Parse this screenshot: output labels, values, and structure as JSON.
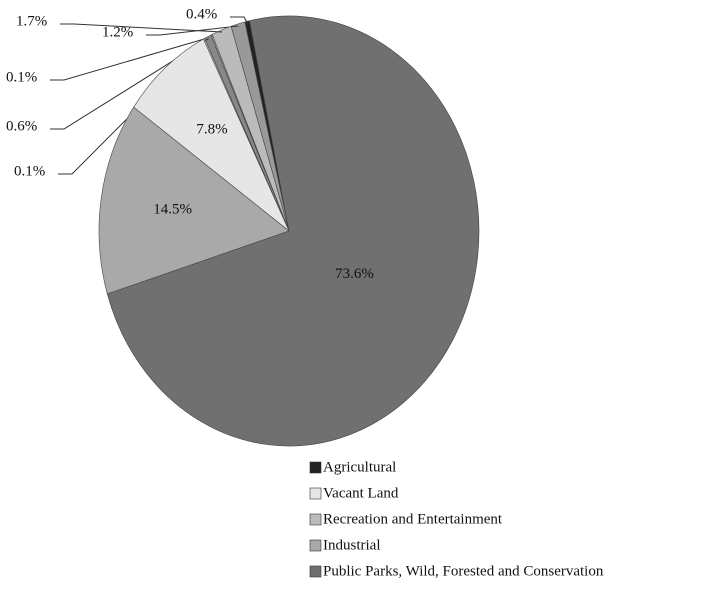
{
  "chart_data": {
    "type": "pie",
    "values": [
      0.4,
      1.2,
      1.7,
      0.1,
      0.6,
      0.1,
      7.8,
      14.5,
      73.6
    ],
    "value_labels": [
      "0.4%",
      "1.2%",
      "1.7%",
      "0.1%",
      "0.6%",
      "0.1%",
      "7.8%",
      "14.5%",
      "73.6%"
    ],
    "colors": [
      "#222222",
      "#999999",
      "#bbbbbb",
      "#cccccc",
      "#888888",
      "#dddddd",
      "#e6e6e6",
      "#a9a9a9",
      "#707070"
    ],
    "legend": [
      {
        "name": "Agricultural",
        "color": "#222222"
      },
      {
        "name": "Vacant Land",
        "color": "#e6e6e6"
      },
      {
        "name": "Recreation and Entertainment",
        "color": "#bbbbbb"
      },
      {
        "name": "Industrial",
        "color": "#a9a9a9"
      },
      {
        "name": "Public Parks, Wild, Forested and Conservation",
        "color": "#707070"
      }
    ]
  }
}
